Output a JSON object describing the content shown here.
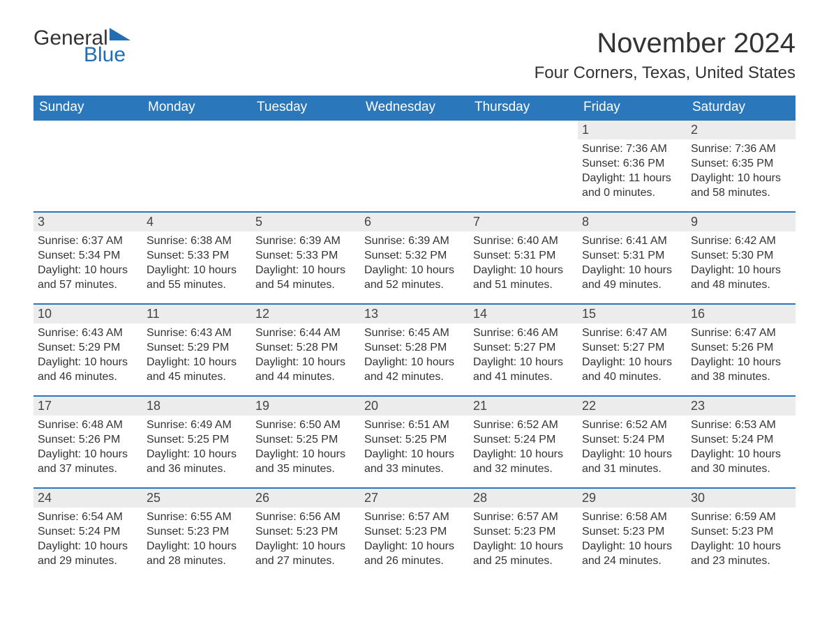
{
  "brand": {
    "text_general": "General",
    "text_blue": "Blue",
    "flag_color": "#1f6fb2",
    "text_color_dark": "#333333"
  },
  "header": {
    "month_title": "November 2024",
    "location": "Four Corners, Texas, United States"
  },
  "colors": {
    "header_bar": "#2a77bb",
    "row_border": "#2a77bb",
    "day_number_bg": "#ececec",
    "background": "#ffffff",
    "text": "#333333"
  },
  "typography": {
    "month_title_fontsize": 40,
    "location_fontsize": 24,
    "weekday_fontsize": 19,
    "daynum_fontsize": 18,
    "body_fontsize": 16
  },
  "calendar": {
    "type": "table",
    "weekdays": [
      "Sunday",
      "Monday",
      "Tuesday",
      "Wednesday",
      "Thursday",
      "Friday",
      "Saturday"
    ],
    "weeks": [
      [
        {
          "day": "",
          "sunrise": "",
          "sunset": "",
          "daylight1": "",
          "daylight2": ""
        },
        {
          "day": "",
          "sunrise": "",
          "sunset": "",
          "daylight1": "",
          "daylight2": ""
        },
        {
          "day": "",
          "sunrise": "",
          "sunset": "",
          "daylight1": "",
          "daylight2": ""
        },
        {
          "day": "",
          "sunrise": "",
          "sunset": "",
          "daylight1": "",
          "daylight2": ""
        },
        {
          "day": "",
          "sunrise": "",
          "sunset": "",
          "daylight1": "",
          "daylight2": ""
        },
        {
          "day": "1",
          "sunrise": "Sunrise: 7:36 AM",
          "sunset": "Sunset: 6:36 PM",
          "daylight1": "Daylight: 11 hours",
          "daylight2": "and 0 minutes."
        },
        {
          "day": "2",
          "sunrise": "Sunrise: 7:36 AM",
          "sunset": "Sunset: 6:35 PM",
          "daylight1": "Daylight: 10 hours",
          "daylight2": "and 58 minutes."
        }
      ],
      [
        {
          "day": "3",
          "sunrise": "Sunrise: 6:37 AM",
          "sunset": "Sunset: 5:34 PM",
          "daylight1": "Daylight: 10 hours",
          "daylight2": "and 57 minutes."
        },
        {
          "day": "4",
          "sunrise": "Sunrise: 6:38 AM",
          "sunset": "Sunset: 5:33 PM",
          "daylight1": "Daylight: 10 hours",
          "daylight2": "and 55 minutes."
        },
        {
          "day": "5",
          "sunrise": "Sunrise: 6:39 AM",
          "sunset": "Sunset: 5:33 PM",
          "daylight1": "Daylight: 10 hours",
          "daylight2": "and 54 minutes."
        },
        {
          "day": "6",
          "sunrise": "Sunrise: 6:39 AM",
          "sunset": "Sunset: 5:32 PM",
          "daylight1": "Daylight: 10 hours",
          "daylight2": "and 52 minutes."
        },
        {
          "day": "7",
          "sunrise": "Sunrise: 6:40 AM",
          "sunset": "Sunset: 5:31 PM",
          "daylight1": "Daylight: 10 hours",
          "daylight2": "and 51 minutes."
        },
        {
          "day": "8",
          "sunrise": "Sunrise: 6:41 AM",
          "sunset": "Sunset: 5:31 PM",
          "daylight1": "Daylight: 10 hours",
          "daylight2": "and 49 minutes."
        },
        {
          "day": "9",
          "sunrise": "Sunrise: 6:42 AM",
          "sunset": "Sunset: 5:30 PM",
          "daylight1": "Daylight: 10 hours",
          "daylight2": "and 48 minutes."
        }
      ],
      [
        {
          "day": "10",
          "sunrise": "Sunrise: 6:43 AM",
          "sunset": "Sunset: 5:29 PM",
          "daylight1": "Daylight: 10 hours",
          "daylight2": "and 46 minutes."
        },
        {
          "day": "11",
          "sunrise": "Sunrise: 6:43 AM",
          "sunset": "Sunset: 5:29 PM",
          "daylight1": "Daylight: 10 hours",
          "daylight2": "and 45 minutes."
        },
        {
          "day": "12",
          "sunrise": "Sunrise: 6:44 AM",
          "sunset": "Sunset: 5:28 PM",
          "daylight1": "Daylight: 10 hours",
          "daylight2": "and 44 minutes."
        },
        {
          "day": "13",
          "sunrise": "Sunrise: 6:45 AM",
          "sunset": "Sunset: 5:28 PM",
          "daylight1": "Daylight: 10 hours",
          "daylight2": "and 42 minutes."
        },
        {
          "day": "14",
          "sunrise": "Sunrise: 6:46 AM",
          "sunset": "Sunset: 5:27 PM",
          "daylight1": "Daylight: 10 hours",
          "daylight2": "and 41 minutes."
        },
        {
          "day": "15",
          "sunrise": "Sunrise: 6:47 AM",
          "sunset": "Sunset: 5:27 PM",
          "daylight1": "Daylight: 10 hours",
          "daylight2": "and 40 minutes."
        },
        {
          "day": "16",
          "sunrise": "Sunrise: 6:47 AM",
          "sunset": "Sunset: 5:26 PM",
          "daylight1": "Daylight: 10 hours",
          "daylight2": "and 38 minutes."
        }
      ],
      [
        {
          "day": "17",
          "sunrise": "Sunrise: 6:48 AM",
          "sunset": "Sunset: 5:26 PM",
          "daylight1": "Daylight: 10 hours",
          "daylight2": "and 37 minutes."
        },
        {
          "day": "18",
          "sunrise": "Sunrise: 6:49 AM",
          "sunset": "Sunset: 5:25 PM",
          "daylight1": "Daylight: 10 hours",
          "daylight2": "and 36 minutes."
        },
        {
          "day": "19",
          "sunrise": "Sunrise: 6:50 AM",
          "sunset": "Sunset: 5:25 PM",
          "daylight1": "Daylight: 10 hours",
          "daylight2": "and 35 minutes."
        },
        {
          "day": "20",
          "sunrise": "Sunrise: 6:51 AM",
          "sunset": "Sunset: 5:25 PM",
          "daylight1": "Daylight: 10 hours",
          "daylight2": "and 33 minutes."
        },
        {
          "day": "21",
          "sunrise": "Sunrise: 6:52 AM",
          "sunset": "Sunset: 5:24 PM",
          "daylight1": "Daylight: 10 hours",
          "daylight2": "and 32 minutes."
        },
        {
          "day": "22",
          "sunrise": "Sunrise: 6:52 AM",
          "sunset": "Sunset: 5:24 PM",
          "daylight1": "Daylight: 10 hours",
          "daylight2": "and 31 minutes."
        },
        {
          "day": "23",
          "sunrise": "Sunrise: 6:53 AM",
          "sunset": "Sunset: 5:24 PM",
          "daylight1": "Daylight: 10 hours",
          "daylight2": "and 30 minutes."
        }
      ],
      [
        {
          "day": "24",
          "sunrise": "Sunrise: 6:54 AM",
          "sunset": "Sunset: 5:24 PM",
          "daylight1": "Daylight: 10 hours",
          "daylight2": "and 29 minutes."
        },
        {
          "day": "25",
          "sunrise": "Sunrise: 6:55 AM",
          "sunset": "Sunset: 5:23 PM",
          "daylight1": "Daylight: 10 hours",
          "daylight2": "and 28 minutes."
        },
        {
          "day": "26",
          "sunrise": "Sunrise: 6:56 AM",
          "sunset": "Sunset: 5:23 PM",
          "daylight1": "Daylight: 10 hours",
          "daylight2": "and 27 minutes."
        },
        {
          "day": "27",
          "sunrise": "Sunrise: 6:57 AM",
          "sunset": "Sunset: 5:23 PM",
          "daylight1": "Daylight: 10 hours",
          "daylight2": "and 26 minutes."
        },
        {
          "day": "28",
          "sunrise": "Sunrise: 6:57 AM",
          "sunset": "Sunset: 5:23 PM",
          "daylight1": "Daylight: 10 hours",
          "daylight2": "and 25 minutes."
        },
        {
          "day": "29",
          "sunrise": "Sunrise: 6:58 AM",
          "sunset": "Sunset: 5:23 PM",
          "daylight1": "Daylight: 10 hours",
          "daylight2": "and 24 minutes."
        },
        {
          "day": "30",
          "sunrise": "Sunrise: 6:59 AM",
          "sunset": "Sunset: 5:23 PM",
          "daylight1": "Daylight: 10 hours",
          "daylight2": "and 23 minutes."
        }
      ]
    ]
  }
}
